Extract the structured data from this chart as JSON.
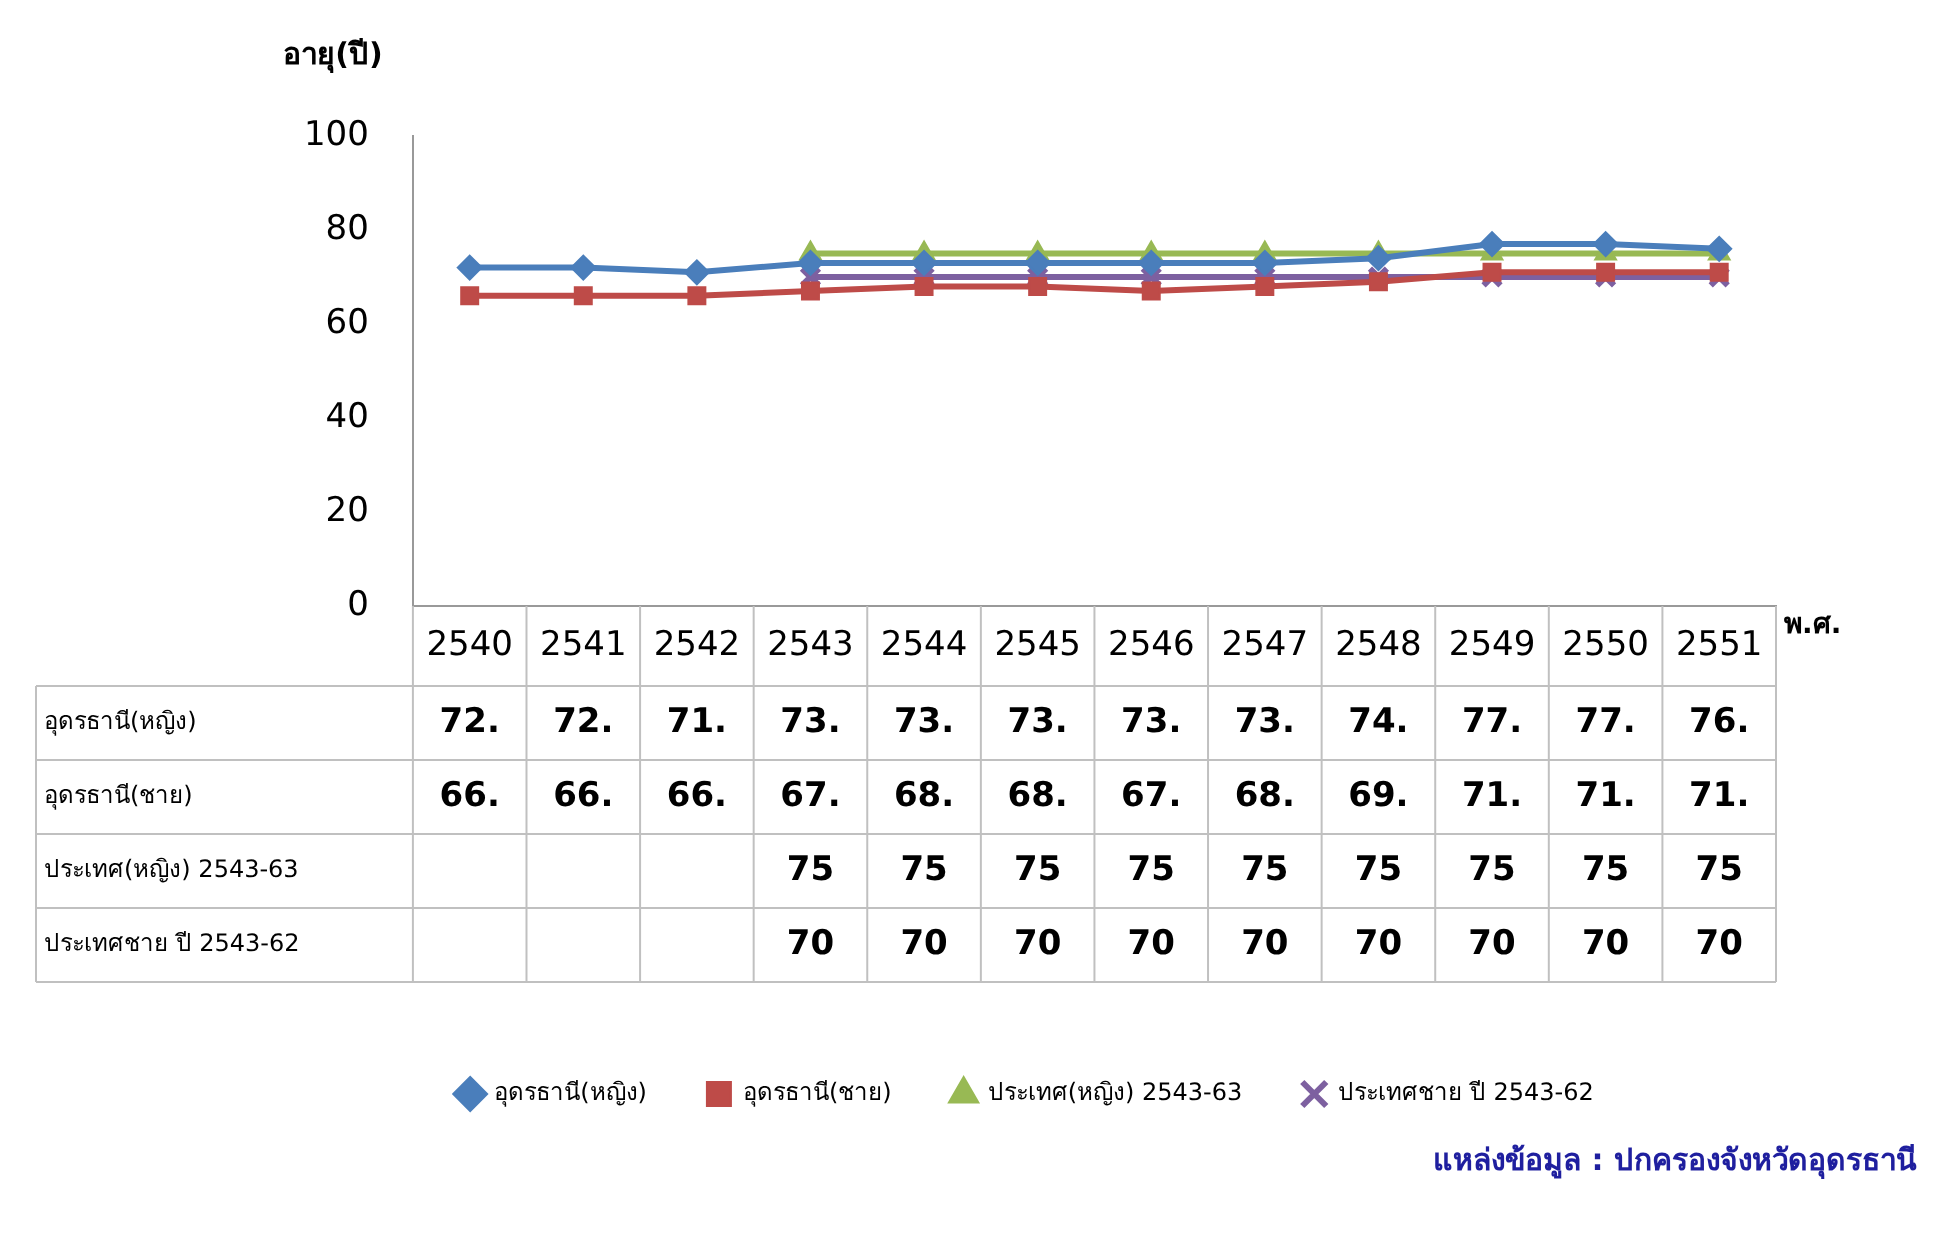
{
  "chart_data": {
    "type": "line",
    "ylabel": "อายุ(ปี)",
    "xlabel": "พ.ศ.",
    "categories": [
      "2540",
      "2541",
      "2542",
      "2543",
      "2544",
      "2545",
      "2546",
      "2547",
      "2548",
      "2549",
      "2550",
      "2551"
    ],
    "series": [
      {
        "name": "อุดรธานี(หญิง)",
        "color": "#4a7ebb",
        "marker": "diamond",
        "values": [
          72,
          72,
          71,
          73,
          73,
          73,
          73,
          73,
          74,
          77,
          77,
          76
        ],
        "value_labels": [
          "72.",
          "72.",
          "71.",
          "73.",
          "73.",
          "73.",
          "73.",
          "73.",
          "74.",
          "77.",
          "77.",
          "76."
        ]
      },
      {
        "name": "อุดรธานี(ชาย)",
        "color": "#be4b48",
        "marker": "square",
        "values": [
          66,
          66,
          66,
          67,
          68,
          68,
          67,
          68,
          69,
          71,
          71,
          71
        ],
        "value_labels": [
          "66.",
          "66.",
          "66.",
          "67.",
          "68.",
          "68.",
          "67.",
          "68.",
          "69.",
          "71.",
          "71.",
          "71."
        ]
      },
      {
        "name": "ประเทศ(หญิง) 2543-63",
        "color": "#98b954",
        "marker": "triangle",
        "values": [
          null,
          null,
          null,
          75,
          75,
          75,
          75,
          75,
          75,
          75,
          75,
          75
        ],
        "value_labels": [
          null,
          null,
          null,
          "75",
          "75",
          "75",
          "75",
          "75",
          "75",
          "75",
          "75",
          "75"
        ]
      },
      {
        "name": "ประเทศชาย ปี 2543-62",
        "color": "#7d60a0",
        "marker": "cross",
        "values": [
          null,
          null,
          null,
          70,
          70,
          70,
          70,
          70,
          70,
          70,
          70,
          70
        ],
        "value_labels": [
          null,
          null,
          null,
          "70",
          "70",
          "70",
          "70",
          "70",
          "70",
          "70",
          "70",
          "70"
        ]
      }
    ],
    "ylim": [
      0,
      100
    ],
    "yticks": [
      0,
      20,
      40,
      60,
      80,
      100
    ],
    "grid": false,
    "legend": "bottom",
    "line_style": "solid",
    "annotations": [
      "แหล่งข้อมูล : ปกครองจังหวัดอุดรธานี"
    ]
  }
}
